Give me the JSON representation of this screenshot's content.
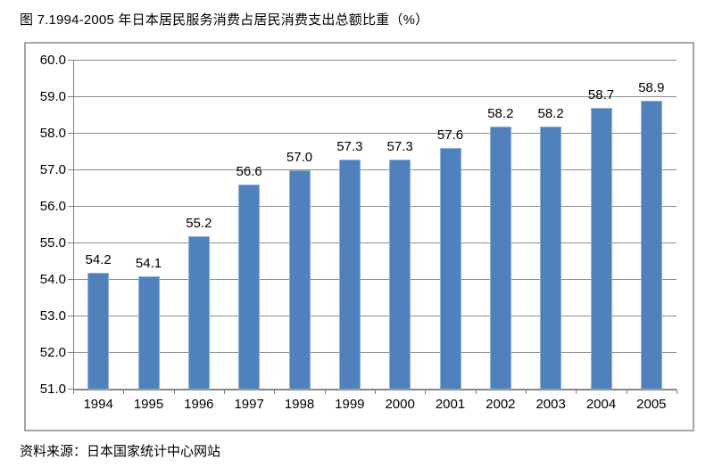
{
  "title": "图 7.1994-2005 年日本居民服务消费占居民消费支出总额比重（%）",
  "source": "资料来源：日本国家统计中心网站",
  "chart_data": {
    "type": "bar",
    "title": "图 7.1994-2005 年日本居民服务消费占居民消费支出总额比重（%）",
    "categories": [
      "1994",
      "1995",
      "1996",
      "1997",
      "1998",
      "1999",
      "2000",
      "2001",
      "2002",
      "2003",
      "2004",
      "2005"
    ],
    "values": [
      54.2,
      54.1,
      55.2,
      56.6,
      57.0,
      57.3,
      57.3,
      57.6,
      58.2,
      58.2,
      58.7,
      58.9
    ],
    "value_labels": [
      "54.2",
      "54.1",
      "55.2",
      "56.6",
      "57.0",
      "57.3",
      "57.3",
      "57.6",
      "58.2",
      "58.2",
      "58.7",
      "58.9"
    ],
    "xlabel": "",
    "ylabel": "",
    "ylim": [
      51.0,
      60.0
    ],
    "y_tick_step": 1.0,
    "y_tick_labels": [
      "51.0",
      "52.0",
      "53.0",
      "54.0",
      "55.0",
      "56.0",
      "57.0",
      "58.0",
      "59.0",
      "60.0"
    ],
    "grid": true,
    "legend": "none",
    "bar_color": "#4F81BD",
    "bar_border_color": "#8FB0D8",
    "gridline_color": "#8c8c8c",
    "frame_border_color": "#a6a6a6",
    "annotation": "数据标签显示在每个柱形上方"
  }
}
